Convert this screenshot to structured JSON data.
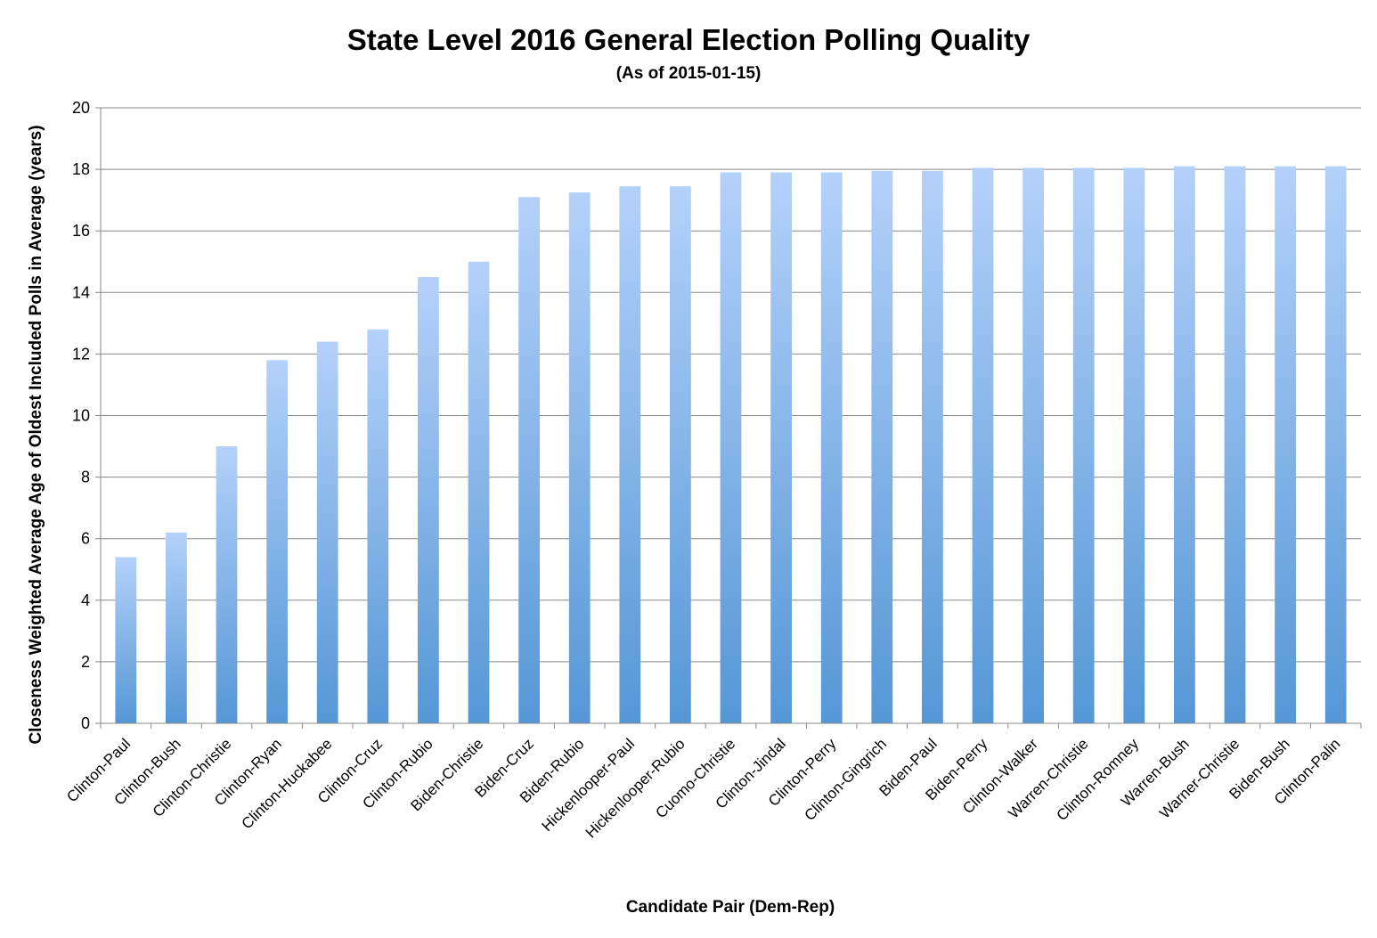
{
  "chart_data": {
    "type": "bar",
    "title": "State Level 2016 General Election Polling Quality",
    "subtitle": "(As of 2015-01-15)",
    "xlabel": "Candidate Pair (Dem-Rep)",
    "ylabel": "Closeness Weighted Average Age of Oldest Included Polls in Average (years)",
    "ylim": [
      0,
      20
    ],
    "yticks": [
      0,
      2,
      4,
      6,
      8,
      10,
      12,
      14,
      16,
      18,
      20
    ],
    "grid": true,
    "legend": "none",
    "categories": [
      "Clinton-Paul",
      "Clinton-Bush",
      "Clinton-Christie",
      "Clinton-Ryan",
      "Clinton-Huckabee",
      "Clinton-Cruz",
      "Clinton-Rubio",
      "Biden-Christie",
      "Biden-Cruz",
      "Biden-Rubio",
      "Hickenlooper-Paul",
      "Hickenlooper-Rubio",
      "Cuomo-Christie",
      "Clinton-Jindal",
      "Clinton-Perry",
      "Clinton-Gingrich",
      "Biden-Paul",
      "Biden-Perry",
      "Clinton-Walker",
      "Warren-Christie",
      "Clinton-Romney",
      "Warren-Bush",
      "Warner-Christie",
      "Biden-Bush",
      "Clinton-Palin"
    ],
    "values": [
      5.4,
      6.2,
      9.0,
      11.8,
      12.4,
      12.8,
      14.5,
      15.0,
      17.1,
      17.25,
      17.45,
      17.45,
      17.9,
      17.9,
      17.9,
      17.95,
      17.95,
      18.05,
      18.05,
      18.05,
      18.05,
      18.1,
      18.1,
      18.1,
      18.1
    ],
    "colors": {
      "bar_top": "#b4d1fa",
      "bar_bottom": "#5597d6",
      "grid": "#888888"
    }
  }
}
